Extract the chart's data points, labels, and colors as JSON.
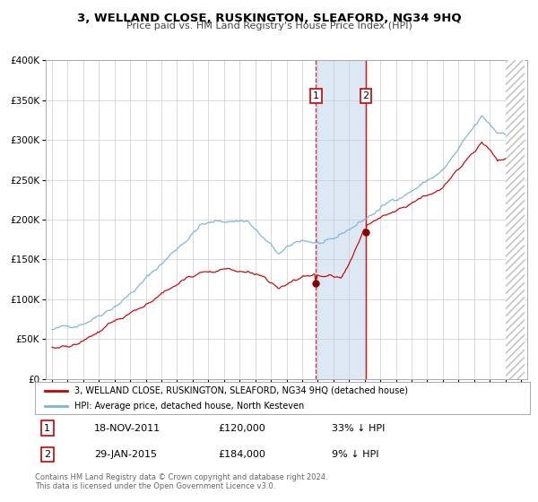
{
  "title": "3, WELLAND CLOSE, RUSKINGTON, SLEAFORD, NG34 9HQ",
  "subtitle": "Price paid vs. HM Land Registry's House Price Index (HPI)",
  "legend_line1": "3, WELLAND CLOSE, RUSKINGTON, SLEAFORD, NG34 9HQ (detached house)",
  "legend_line2": "HPI: Average price, detached house, North Kesteven",
  "transaction1_date": "18-NOV-2011",
  "transaction1_price": 120000,
  "transaction1_label": "33% ↓ HPI",
  "transaction2_date": "29-JAN-2015",
  "transaction2_price": 184000,
  "transaction2_label": "9% ↓ HPI",
  "footer": "Contains HM Land Registry data © Crown copyright and database right 2024.\nThis data is licensed under the Open Government Licence v3.0.",
  "hpi_color": "#7ab4d8",
  "price_color": "#cc0000",
  "dot_color": "#880000",
  "shade_color": "#dce9f5",
  "grid_color": "#cccccc",
  "bg_color": "#ffffff",
  "hatch_color": "#bbbbbb"
}
